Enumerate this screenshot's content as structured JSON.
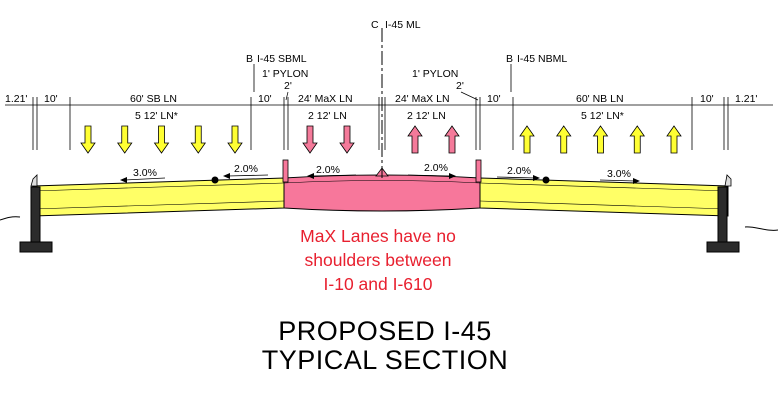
{
  "centerline": {
    "symbol": "C",
    "label": "I-45 ML"
  },
  "baselines": {
    "left": {
      "symbol": "B",
      "label": "I-45 SBML"
    },
    "right": {
      "symbol": "B",
      "label": "I-45 NBML"
    }
  },
  "pylons": {
    "left": {
      "label": "1' PYLON",
      "offset": "2'"
    },
    "right": {
      "label": "1' PYLON",
      "offset": "2'"
    }
  },
  "dimensions": {
    "left_edge": "1.21'",
    "sb_shoulder_outer": "10'",
    "sb_lanes": "60' SB LN",
    "sb_shoulder_inner": "10'",
    "max_left": "24' MaX LN",
    "max_right": "24' MaX LN",
    "nb_shoulder_inner": "10'",
    "nb_lanes": "60' NB LN",
    "nb_shoulder_outer": "10'",
    "right_edge": "1.21'"
  },
  "lane_counts": {
    "sb": "5 12' LN*",
    "max_left": "2 12' LN",
    "max_right": "2 12' LN",
    "nb": "5 12' LN*"
  },
  "slopes": {
    "sb_outer": "3.0%",
    "sb_inner": "2.0%",
    "max_left": "2.0%",
    "max_right": "2.0%",
    "nb_inner": "2.0%",
    "nb_outer": "3.0%"
  },
  "arrows": {
    "sb_count": 5,
    "max_left_count": 2,
    "max_right_count": 2,
    "nb_count": 5
  },
  "note": [
    "MaX Lanes have no",
    "shoulders between",
    "I-10 and I-610"
  ],
  "title": [
    "PROPOSED I-45",
    "TYPICAL SECTION"
  ],
  "colors": {
    "general_lanes": "#ffff66",
    "max_lanes": "#f7779b",
    "arrow_yellow": "#ffff33",
    "arrow_pink": "#f47a9a",
    "note": "#e8202f"
  }
}
